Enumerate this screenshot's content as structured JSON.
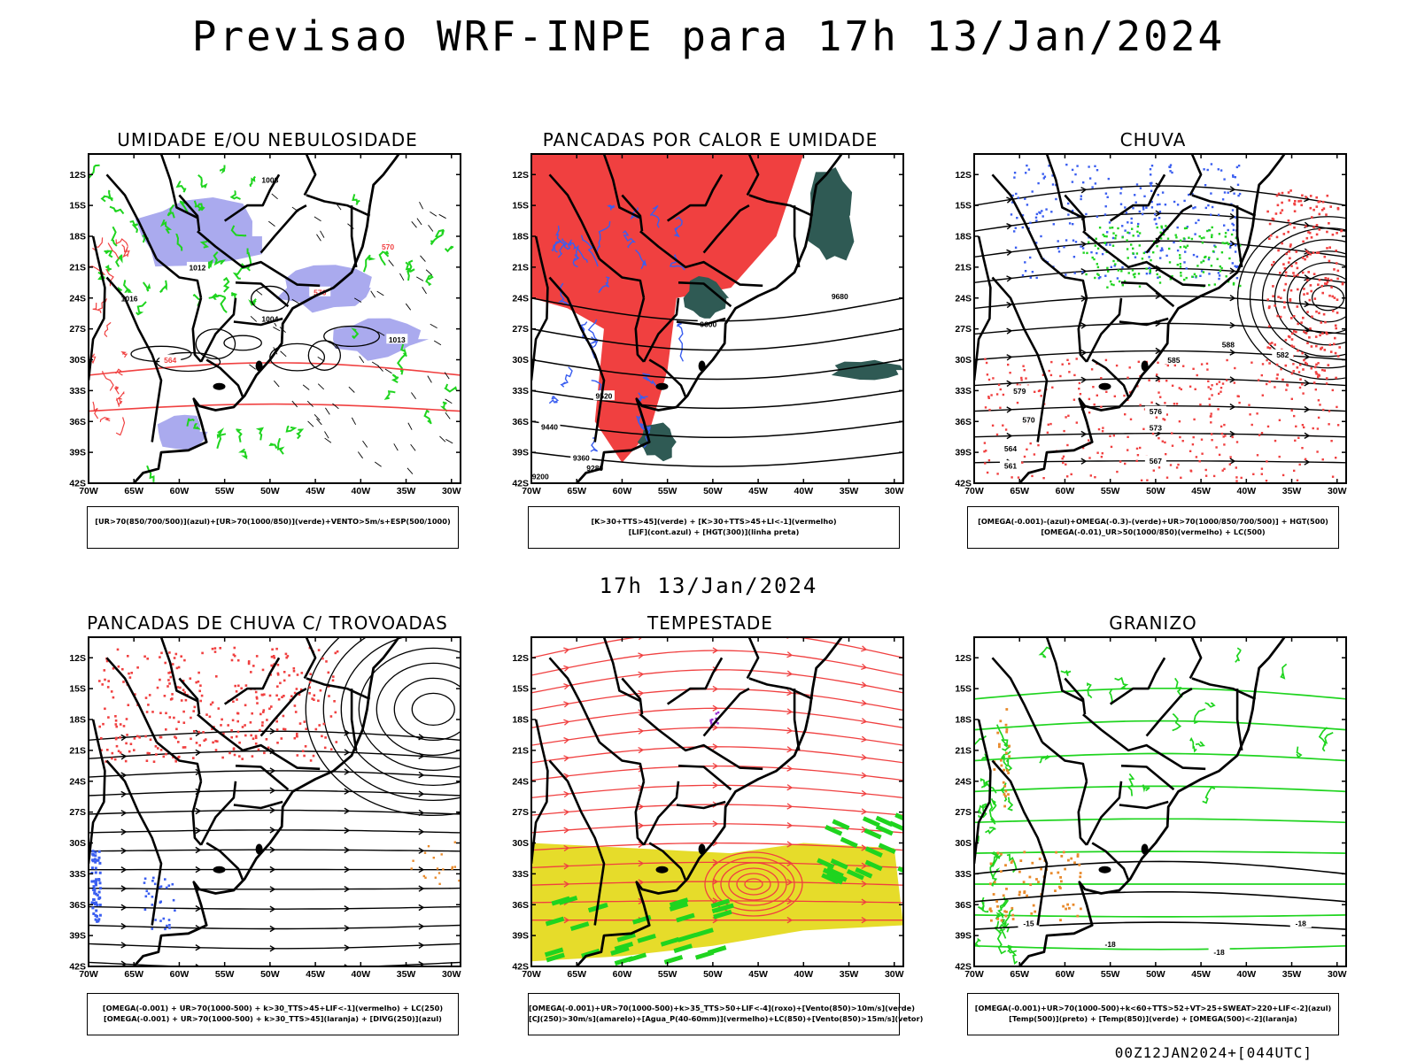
{
  "main_title": "Previsao WRF-INPE  para 17h 13/Jan/2024",
  "middle_time": "17h 13/Jan/2024",
  "footer": "00Z12JAN2024+[044UTC]",
  "axes": {
    "lat_ticks": [
      "12S",
      "15S",
      "18S",
      "21S",
      "24S",
      "27S",
      "30S",
      "33S",
      "36S",
      "39S",
      "42S"
    ],
    "lon_ticks": [
      "70W",
      "65W",
      "60W",
      "55W",
      "50W",
      "45W",
      "40W",
      "35W",
      "30W"
    ]
  },
  "colors": {
    "green": "#1fd41f",
    "red": "#f04040",
    "blue": "#3a5ef0",
    "lavender": "#aaaaee",
    "dark_teal": "#2f5a54",
    "yellow": "#e6dc2a",
    "orange": "#e88a2c",
    "purple": "#9a2fd0"
  },
  "panels": [
    {
      "id": "umidade",
      "title": "UMIDADE E/OU NEBULOSIDADE",
      "caption": [
        "[UR>70(850/700/500)](azul)+[UR>70(1000/850)](verde)+VENTO>5m/s+ESP(500/1000)"
      ],
      "labels": [
        "1008",
        "1012",
        "1016",
        "1004",
        "570",
        "564",
        "576",
        "1013"
      ]
    },
    {
      "id": "pancadas",
      "title": "PANCADAS POR CALOR E UMIDADE",
      "caption": [
        "[K>30+TTS>45](verde) + [K>30+TTS>45+LI<-1](vermelho)",
        "[LIF](cont.azul) + [HGT(300)](linha preta)"
      ],
      "labels": [
        "9680",
        "9600",
        "9520",
        "9440",
        "9360",
        "9280",
        "9200"
      ]
    },
    {
      "id": "chuva",
      "title": "CHUVA",
      "caption": [
        "[OMEGA(-0.001)-(azul)+OMEGA(-0.3)-(verde)+UR>70(1000/850/700/500)] + HGT(500)",
        "[OMEGA(-0.01)_UR>50(1000/850)(vermelho) + LC(500)"
      ],
      "labels": [
        "588",
        "585",
        "582",
        "579",
        "576",
        "573",
        "570",
        "567",
        "564",
        "561"
      ]
    },
    {
      "id": "trovoadas",
      "title": "PANCADAS DE CHUVA C/ TROVOADAS",
      "caption": [
        "[OMEGA(-0.001) + UR>70(1000-500) + k>30_TTS>45+LIF<-1](vermelho) + LC(250)",
        "[OMEGA(-0.001) + UR>70(1000-500) + k>30_TTS>45](laranja) + [DIVG(250)](azul)"
      ],
      "labels": []
    },
    {
      "id": "tempestade",
      "title": "TEMPESTADE",
      "caption": [
        "[OMEGA(-0.001)+UR>70(1000-500)+k>35_TTS>50+LIF<-4](roxo)+[Vento(850)>10m/s](verde)",
        "[CJ(250)>30m/s](amarelo)+[Agua_P(40-60mm)](vermelho)+LC(850)+[Vento(850)>15m/s](vetor)"
      ],
      "labels": []
    },
    {
      "id": "granizo",
      "title": "GRANIZO",
      "caption": [
        "[OMEGA(-0.001)+UR>70(1000-500)+k<60+TTS>52+VT>25+SWEAT>220+LIF<-2](azul)",
        "[Temp(500)](preto) + [Temp(850)](verde) + [OMEGA(500)<-2](laranja)"
      ],
      "labels": [
        "-15",
        "-18"
      ]
    }
  ]
}
